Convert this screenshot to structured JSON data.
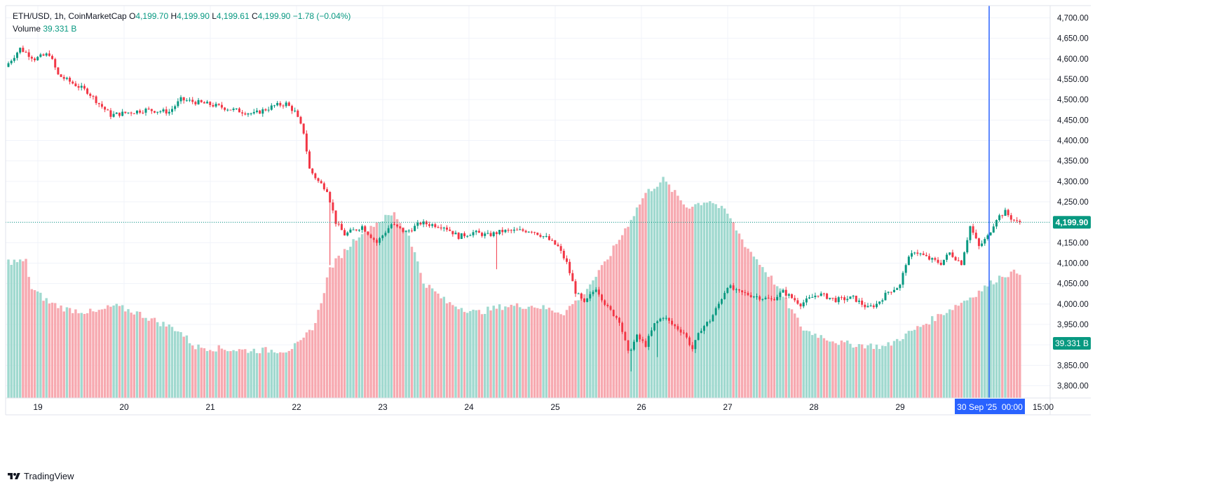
{
  "legend": {
    "symbol": "ETH/USD, 1h, CoinMarketCap",
    "o_label": "O",
    "o_value": "4,199.70",
    "h_label": "H",
    "h_value": "4,199.90",
    "l_label": "L",
    "l_value": "4,199.61",
    "c_label": "C",
    "c_value": "4,199.90",
    "change": "−1.78 (−0.04%)",
    "volume_label": "Volume",
    "volume_value": "39.331 B"
  },
  "branding": {
    "name": "TradingView"
  },
  "colors": {
    "up": "#089981",
    "down": "#f23645",
    "up_volume": "#a0d9cf",
    "down_volume": "#f7a9b0",
    "grid": "#f0f3fa",
    "crosshair": "#2962ff",
    "axis_text": "#131722",
    "price_line": "#089981"
  },
  "chart_data": {
    "type": "candlestick",
    "title": "ETH/USD, 1h, CoinMarketCap",
    "x_tick_labels": [
      "19",
      "20",
      "21",
      "22",
      "23",
      "24",
      "25",
      "26",
      "27",
      "28",
      "29",
      "15:00"
    ],
    "y_tick_labels": [
      "3,800.00",
      "3,850.00",
      "3,900.00",
      "3,950.00",
      "4,000.00",
      "4,050.00",
      "4,100.00",
      "4,150.00",
      "4,200.00",
      "4,250.00",
      "4,300.00",
      "4,350.00",
      "4,400.00",
      "4,450.00",
      "4,500.00",
      "4,550.00",
      "4,600.00",
      "4,650.00",
      "4,700.00"
    ],
    "ylim": [
      3770,
      4730
    ],
    "last_price_label": "4,199.90",
    "last_price": 4199.9,
    "volume_label": "39.331 B",
    "crosshair_label": "30 Sep '25  00:00",
    "grid": true,
    "anchors": [
      {
        "x": 0,
        "p": 4580
      },
      {
        "x": 5,
        "p": 4625
      },
      {
        "x": 10,
        "p": 4600
      },
      {
        "x": 15,
        "p": 4612
      },
      {
        "x": 18,
        "p": 4560
      },
      {
        "x": 28,
        "p": 4520
      },
      {
        "x": 32,
        "p": 4490
      },
      {
        "x": 36,
        "p": 4462
      },
      {
        "x": 48,
        "p": 4475
      },
      {
        "x": 56,
        "p": 4470
      },
      {
        "x": 60,
        "p": 4500
      },
      {
        "x": 70,
        "p": 4488
      },
      {
        "x": 78,
        "p": 4475
      },
      {
        "x": 85,
        "p": 4465
      },
      {
        "x": 92,
        "p": 4485
      },
      {
        "x": 96,
        "p": 4490
      },
      {
        "x": 99,
        "p": 4470
      },
      {
        "x": 102,
        "p": 4420
      },
      {
        "x": 104,
        "p": 4330
      },
      {
        "x": 107,
        "p": 4300
      },
      {
        "x": 110,
        "p": 4280
      },
      {
        "x": 113,
        "p": 4200
      },
      {
        "x": 116,
        "p": 4170
      },
      {
        "x": 122,
        "p": 4190
      },
      {
        "x": 127,
        "p": 4150
      },
      {
        "x": 132,
        "p": 4195
      },
      {
        "x": 137,
        "p": 4175
      },
      {
        "x": 142,
        "p": 4198
      },
      {
        "x": 150,
        "p": 4190
      },
      {
        "x": 155,
        "p": 4165
      },
      {
        "x": 160,
        "p": 4175
      },
      {
        "x": 165,
        "p": 4168
      },
      {
        "x": 170,
        "p": 4178
      },
      {
        "x": 180,
        "p": 4180
      },
      {
        "x": 185,
        "p": 4162
      },
      {
        "x": 189,
        "p": 4140
      },
      {
        "x": 192,
        "p": 4100
      },
      {
        "x": 195,
        "p": 4030
      },
      {
        "x": 198,
        "p": 4000
      },
      {
        "x": 202,
        "p": 4040
      },
      {
        "x": 206,
        "p": 3990
      },
      {
        "x": 210,
        "p": 3960
      },
      {
        "x": 213,
        "p": 3880
      },
      {
        "x": 216,
        "p": 3920
      },
      {
        "x": 219,
        "p": 3900
      },
      {
        "x": 222,
        "p": 3950
      },
      {
        "x": 225,
        "p": 3970
      },
      {
        "x": 228,
        "p": 3950
      },
      {
        "x": 232,
        "p": 3930
      },
      {
        "x": 235,
        "p": 3890
      },
      {
        "x": 238,
        "p": 3940
      },
      {
        "x": 241,
        "p": 3960
      },
      {
        "x": 244,
        "p": 4000
      },
      {
        "x": 247,
        "p": 4045
      },
      {
        "x": 250,
        "p": 4030
      },
      {
        "x": 256,
        "p": 4020
      },
      {
        "x": 262,
        "p": 4010
      },
      {
        "x": 266,
        "p": 4030
      },
      {
        "x": 272,
        "p": 4000
      },
      {
        "x": 278,
        "p": 4025
      },
      {
        "x": 284,
        "p": 4010
      },
      {
        "x": 290,
        "p": 4015
      },
      {
        "x": 295,
        "p": 3990
      },
      {
        "x": 298,
        "p": 4000
      },
      {
        "x": 302,
        "p": 4030
      },
      {
        "x": 306,
        "p": 4045
      },
      {
        "x": 308,
        "p": 4100
      },
      {
        "x": 311,
        "p": 4130
      },
      {
        "x": 316,
        "p": 4110
      },
      {
        "x": 320,
        "p": 4100
      },
      {
        "x": 323,
        "p": 4125
      },
      {
        "x": 327,
        "p": 4100
      },
      {
        "x": 330,
        "p": 4190
      },
      {
        "x": 333,
        "p": 4140
      },
      {
        "x": 336,
        "p": 4165
      },
      {
        "x": 339,
        "p": 4210
      },
      {
        "x": 342,
        "p": 4225
      },
      {
        "x": 344,
        "p": 4210
      },
      {
        "x": 346,
        "p": 4200
      }
    ],
    "volume_anchors": [
      {
        "x": 0,
        "v": 40
      },
      {
        "x": 6,
        "v": 40
      },
      {
        "x": 8,
        "v": 32
      },
      {
        "x": 14,
        "v": 28
      },
      {
        "x": 20,
        "v": 26
      },
      {
        "x": 30,
        "v": 25
      },
      {
        "x": 36,
        "v": 27
      },
      {
        "x": 44,
        "v": 25
      },
      {
        "x": 52,
        "v": 22
      },
      {
        "x": 58,
        "v": 20
      },
      {
        "x": 64,
        "v": 15
      },
      {
        "x": 80,
        "v": 14
      },
      {
        "x": 95,
        "v": 14
      },
      {
        "x": 100,
        "v": 16
      },
      {
        "x": 105,
        "v": 22
      },
      {
        "x": 110,
        "v": 38
      },
      {
        "x": 120,
        "v": 48
      },
      {
        "x": 127,
        "v": 52
      },
      {
        "x": 132,
        "v": 54
      },
      {
        "x": 137,
        "v": 48
      },
      {
        "x": 142,
        "v": 34
      },
      {
        "x": 150,
        "v": 28
      },
      {
        "x": 160,
        "v": 25
      },
      {
        "x": 170,
        "v": 27
      },
      {
        "x": 180,
        "v": 27
      },
      {
        "x": 190,
        "v": 25
      },
      {
        "x": 196,
        "v": 30
      },
      {
        "x": 203,
        "v": 38
      },
      {
        "x": 210,
        "v": 48
      },
      {
        "x": 218,
        "v": 60
      },
      {
        "x": 224,
        "v": 64
      },
      {
        "x": 232,
        "v": 56
      },
      {
        "x": 240,
        "v": 58
      },
      {
        "x": 246,
        "v": 54
      },
      {
        "x": 252,
        "v": 45
      },
      {
        "x": 262,
        "v": 34
      },
      {
        "x": 272,
        "v": 20
      },
      {
        "x": 285,
        "v": 16
      },
      {
        "x": 300,
        "v": 15
      },
      {
        "x": 310,
        "v": 20
      },
      {
        "x": 320,
        "v": 25
      },
      {
        "x": 330,
        "v": 30
      },
      {
        "x": 340,
        "v": 36
      },
      {
        "x": 346,
        "v": 37
      }
    ],
    "volume_ylim": [
      0,
      115
    ]
  }
}
